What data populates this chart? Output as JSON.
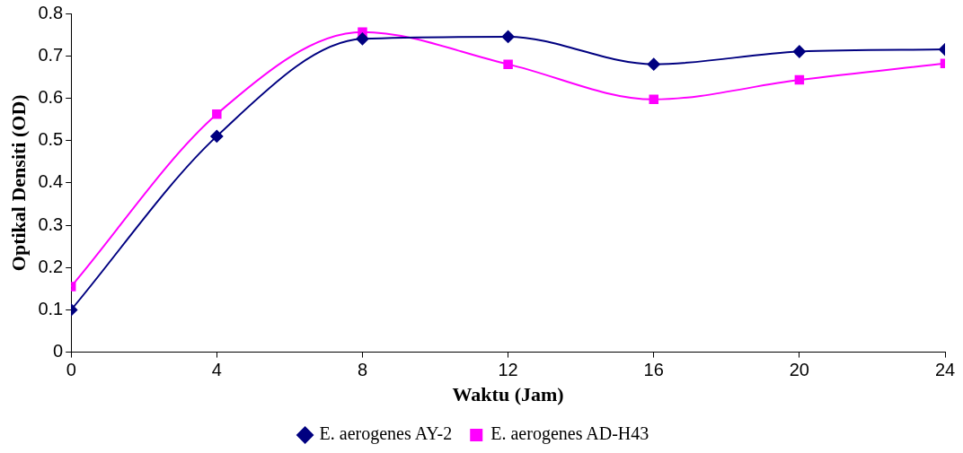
{
  "chart_data": {
    "type": "line",
    "xlabel": "Waktu (Jam)",
    "ylabel": "Optikal Densiti (OD)",
    "x": [
      0,
      4,
      8,
      12,
      16,
      20,
      24
    ],
    "xlim": [
      0,
      24
    ],
    "xticks": [
      0,
      4,
      8,
      12,
      16,
      20,
      24
    ],
    "ylim": [
      0,
      0.8
    ],
    "yticks": [
      0,
      0.1,
      0.2,
      0.3,
      0.4,
      0.5,
      0.6,
      0.7,
      0.8
    ],
    "grid": false,
    "legend": "bottom",
    "line_style": "solid",
    "series": [
      {
        "name": "E. aerogenes AY-2",
        "color": "#000080",
        "marker": "diamond",
        "values": [
          0.1,
          0.51,
          0.74,
          0.745,
          0.68,
          0.71,
          0.715
        ]
      },
      {
        "name": "E. aerogenes AD-H43",
        "color": "#ff00ff",
        "marker": "square",
        "values": [
          0.155,
          0.562,
          0.756,
          0.68,
          0.597,
          0.643,
          0.682
        ]
      }
    ]
  }
}
